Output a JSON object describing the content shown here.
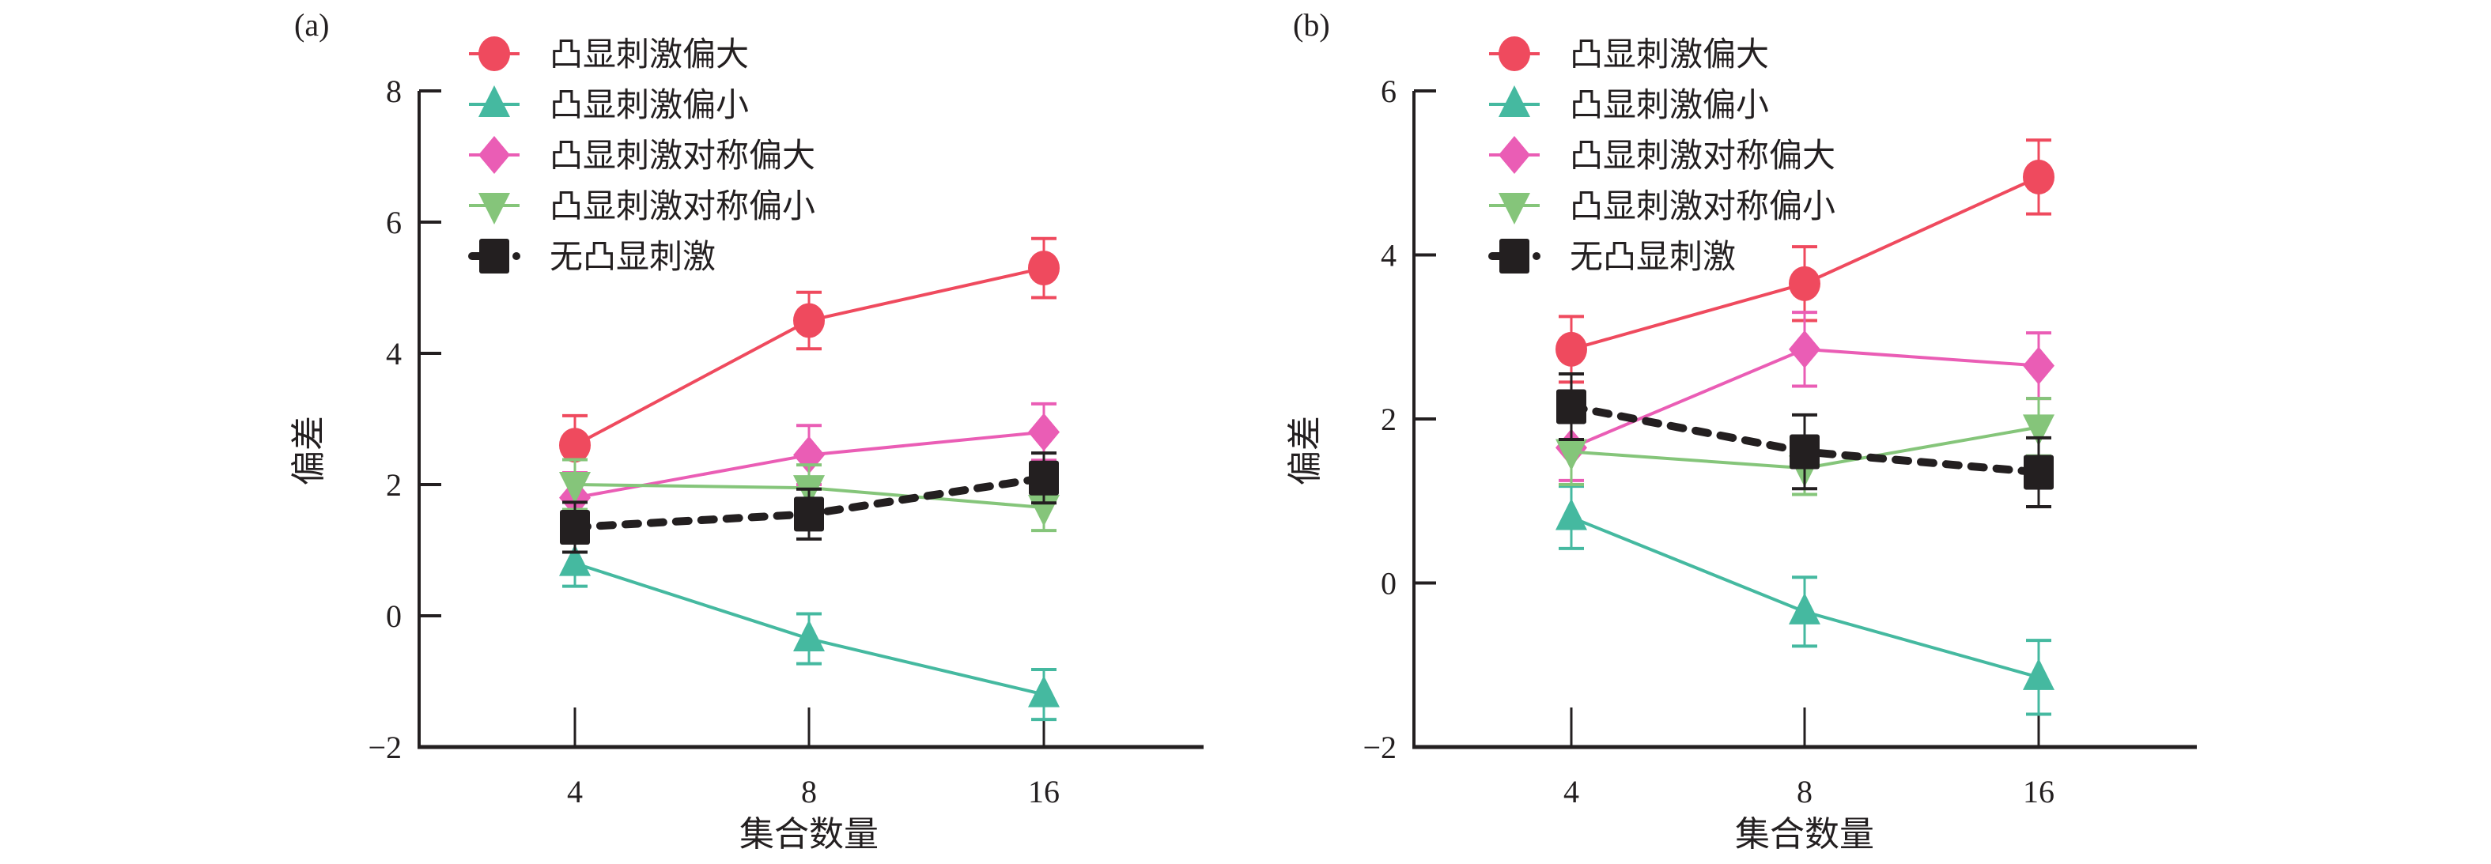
{
  "chart_data": [
    {
      "type": "line",
      "panel_label": "(a)",
      "xlabel": "集合数量",
      "ylabel": "偏差",
      "categories": [
        "4",
        "8",
        "16"
      ],
      "ylim": [
        -2,
        8
      ],
      "yticks": [
        -2,
        0,
        2,
        4,
        6,
        8
      ],
      "ytick_labels": [
        "−2",
        "0",
        "2",
        "4",
        "6",
        "8"
      ],
      "legend_position": "top-left",
      "series": [
        {
          "name": "凸显刺激偏大",
          "color": "#ef4a5e",
          "marker": "circle",
          "dashed": false,
          "values": [
            2.6,
            4.5,
            5.3
          ],
          "errors": [
            0.45,
            0.43,
            0.45
          ]
        },
        {
          "name": "凸显刺激偏小",
          "color": "#45b9a0",
          "marker": "triangle-up",
          "dashed": false,
          "values": [
            0.8,
            -0.35,
            -1.2
          ],
          "errors": [
            0.35,
            0.38,
            0.38
          ]
        },
        {
          "name": "凸显刺激对称偏大",
          "color": "#ea5db5",
          "marker": "diamond",
          "dashed": false,
          "values": [
            1.8,
            2.45,
            2.8
          ],
          "errors": [
            0.38,
            0.45,
            0.43
          ]
        },
        {
          "name": "凸显刺激对称偏小",
          "color": "#85c57a",
          "marker": "triangle-down",
          "dashed": false,
          "values": [
            2.0,
            1.95,
            1.65
          ],
          "errors": [
            0.38,
            0.35,
            0.35
          ]
        },
        {
          "name": "无凸显刺激",
          "color": "#231f20",
          "marker": "square",
          "dashed": true,
          "values": [
            1.35,
            1.55,
            2.1
          ],
          "errors": [
            0.38,
            0.38,
            0.38
          ]
        }
      ]
    },
    {
      "type": "line",
      "panel_label": "(b)",
      "xlabel": "集合数量",
      "ylabel": "偏差",
      "categories": [
        "4",
        "8",
        "16"
      ],
      "ylim": [
        -2,
        6
      ],
      "yticks": [
        -2,
        0,
        2,
        4,
        6
      ],
      "ytick_labels": [
        "−2",
        "0",
        "2",
        "4",
        "6"
      ],
      "legend_position": "top-left",
      "series": [
        {
          "name": "凸显刺激偏大",
          "color": "#ef4a5e",
          "marker": "circle",
          "dashed": false,
          "values": [
            2.85,
            3.65,
            4.95
          ],
          "errors": [
            0.4,
            0.45,
            0.45
          ]
        },
        {
          "name": "凸显刺激偏小",
          "color": "#45b9a0",
          "marker": "triangle-up",
          "dashed": false,
          "values": [
            0.8,
            -0.35,
            -1.15
          ],
          "errors": [
            0.38,
            0.42,
            0.45
          ]
        },
        {
          "name": "凸显刺激对称偏大",
          "color": "#ea5db5",
          "marker": "diamond",
          "dashed": false,
          "values": [
            1.65,
            2.85,
            2.65
          ],
          "errors": [
            0.4,
            0.45,
            0.4
          ]
        },
        {
          "name": "凸显刺激对称偏小",
          "color": "#85c57a",
          "marker": "triangle-down",
          "dashed": false,
          "values": [
            1.6,
            1.4,
            1.9
          ],
          "errors": [
            0.4,
            0.32,
            0.35
          ]
        },
        {
          "name": "无凸显刺激",
          "color": "#231f20",
          "marker": "square",
          "dashed": true,
          "values": [
            2.15,
            1.6,
            1.35
          ],
          "errors": [
            0.4,
            0.45,
            0.42
          ]
        }
      ]
    }
  ]
}
